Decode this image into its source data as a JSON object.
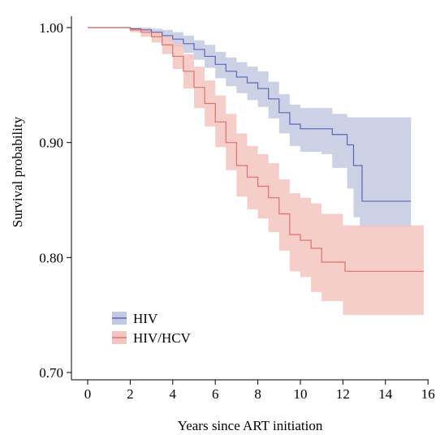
{
  "chart_data": {
    "type": "line",
    "xlabel": "Years since ART initiation",
    "ylabel": "Survival probability",
    "xlim": [
      0,
      16
    ],
    "ylim": [
      0.7,
      1.0
    ],
    "xticks": [
      0,
      2,
      4,
      6,
      8,
      10,
      12,
      14,
      16
    ],
    "yticks": [
      0.7,
      0.8,
      0.9,
      1.0
    ],
    "ytick_labels": [
      "0.70",
      "0.80",
      "0.90",
      "1.00"
    ],
    "grid": false,
    "legend": {
      "position": "bottom-left"
    },
    "series": [
      {
        "name": "HIV",
        "color": "#5a66b8",
        "band_color": "#c4c9e2",
        "points": [
          [
            0,
            1.0
          ],
          [
            1.5,
            1.0
          ],
          [
            2,
            0.999
          ],
          [
            2.5,
            0.998
          ],
          [
            3,
            0.996
          ],
          [
            3.5,
            0.993
          ],
          [
            4,
            0.99
          ],
          [
            4.5,
            0.986
          ],
          [
            5,
            0.981
          ],
          [
            5.5,
            0.975
          ],
          [
            6,
            0.968
          ],
          [
            6.5,
            0.962
          ],
          [
            7,
            0.957
          ],
          [
            7.5,
            0.952
          ],
          [
            8,
            0.947
          ],
          [
            8.5,
            0.938
          ],
          [
            9,
            0.926
          ],
          [
            9.5,
            0.916
          ],
          [
            10,
            0.912
          ],
          [
            11,
            0.912
          ],
          [
            11.5,
            0.907
          ],
          [
            12.2,
            0.898
          ],
          [
            12.5,
            0.88
          ],
          [
            12.8,
            0.88
          ],
          [
            12.9,
            0.849
          ],
          [
            15.2,
            0.849
          ]
        ],
        "ci_upper": [
          [
            0,
            1.0
          ],
          [
            1.5,
            1.0
          ],
          [
            2,
            1.0
          ],
          [
            2.5,
            1.0
          ],
          [
            3,
            0.999
          ],
          [
            3.5,
            0.998
          ],
          [
            4,
            0.996
          ],
          [
            4.5,
            0.993
          ],
          [
            5,
            0.989
          ],
          [
            5.5,
            0.985
          ],
          [
            6,
            0.979
          ],
          [
            6.5,
            0.974
          ],
          [
            7,
            0.97
          ],
          [
            7.5,
            0.966
          ],
          [
            8,
            0.962
          ],
          [
            8.5,
            0.953
          ],
          [
            9,
            0.942
          ],
          [
            9.5,
            0.933
          ],
          [
            10,
            0.93
          ],
          [
            11,
            0.93
          ],
          [
            11.5,
            0.925
          ],
          [
            12.2,
            0.922
          ],
          [
            12.5,
            0.922
          ],
          [
            15.2,
            0.922
          ]
        ],
        "ci_lower": [
          [
            0,
            1.0
          ],
          [
            1.5,
            1.0
          ],
          [
            2,
            0.997
          ],
          [
            2.5,
            0.995
          ],
          [
            3,
            0.992
          ],
          [
            3.5,
            0.988
          ],
          [
            4,
            0.983
          ],
          [
            4.5,
            0.978
          ],
          [
            5,
            0.972
          ],
          [
            5.5,
            0.965
          ],
          [
            6,
            0.956
          ],
          [
            6.5,
            0.949
          ],
          [
            7,
            0.943
          ],
          [
            7.5,
            0.937
          ],
          [
            8,
            0.931
          ],
          [
            8.5,
            0.921
          ],
          [
            9,
            0.908
          ],
          [
            9.5,
            0.897
          ],
          [
            10,
            0.892
          ],
          [
            11,
            0.89
          ],
          [
            11.5,
            0.878
          ],
          [
            12.2,
            0.86
          ],
          [
            12.5,
            0.835
          ],
          [
            12.8,
            0.826
          ],
          [
            15.2,
            0.826
          ]
        ]
      },
      {
        "name": "HIV/HCV",
        "color": "#e0706a",
        "band_color": "#f3c5c0",
        "points": [
          [
            0,
            1.0
          ],
          [
            1.5,
            1.0
          ],
          [
            2,
            0.998
          ],
          [
            2.5,
            0.996
          ],
          [
            3,
            0.992
          ],
          [
            3.5,
            0.985
          ],
          [
            4,
            0.975
          ],
          [
            4.5,
            0.962
          ],
          [
            5,
            0.948
          ],
          [
            5.5,
            0.934
          ],
          [
            6,
            0.918
          ],
          [
            6.5,
            0.9
          ],
          [
            7,
            0.88
          ],
          [
            7.5,
            0.87
          ],
          [
            8,
            0.862
          ],
          [
            8.5,
            0.852
          ],
          [
            9,
            0.838
          ],
          [
            9.5,
            0.82
          ],
          [
            10,
            0.815
          ],
          [
            10.5,
            0.808
          ],
          [
            11,
            0.796
          ],
          [
            12,
            0.796
          ],
          [
            12.1,
            0.788
          ],
          [
            15.8,
            0.788
          ]
        ],
        "ci_upper": [
          [
            0,
            1.0
          ],
          [
            1.5,
            1.0
          ],
          [
            2,
            1.0
          ],
          [
            2.5,
            0.999
          ],
          [
            3,
            0.997
          ],
          [
            3.5,
            0.993
          ],
          [
            4,
            0.986
          ],
          [
            4.5,
            0.977
          ],
          [
            5,
            0.966
          ],
          [
            5.5,
            0.954
          ],
          [
            6,
            0.941
          ],
          [
            6.5,
            0.925
          ],
          [
            7,
            0.908
          ],
          [
            7.5,
            0.897
          ],
          [
            8,
            0.89
          ],
          [
            8.5,
            0.882
          ],
          [
            9,
            0.868
          ],
          [
            9.5,
            0.856
          ],
          [
            10,
            0.852
          ],
          [
            10.5,
            0.847
          ],
          [
            11,
            0.838
          ],
          [
            12,
            0.828
          ],
          [
            15.8,
            0.828
          ]
        ],
        "ci_lower": [
          [
            0,
            1.0
          ],
          [
            1.5,
            1.0
          ],
          [
            2,
            0.996
          ],
          [
            2.5,
            0.992
          ],
          [
            3,
            0.987
          ],
          [
            3.5,
            0.977
          ],
          [
            4,
            0.964
          ],
          [
            4.5,
            0.947
          ],
          [
            5,
            0.93
          ],
          [
            5.5,
            0.914
          ],
          [
            6,
            0.896
          ],
          [
            6.5,
            0.876
          ],
          [
            7,
            0.853
          ],
          [
            7.5,
            0.842
          ],
          [
            8,
            0.834
          ],
          [
            8.5,
            0.822
          ],
          [
            9,
            0.806
          ],
          [
            9.5,
            0.788
          ],
          [
            10,
            0.783
          ],
          [
            10.5,
            0.77
          ],
          [
            11,
            0.762
          ],
          [
            12,
            0.75
          ],
          [
            15.8,
            0.75
          ]
        ]
      }
    ]
  }
}
